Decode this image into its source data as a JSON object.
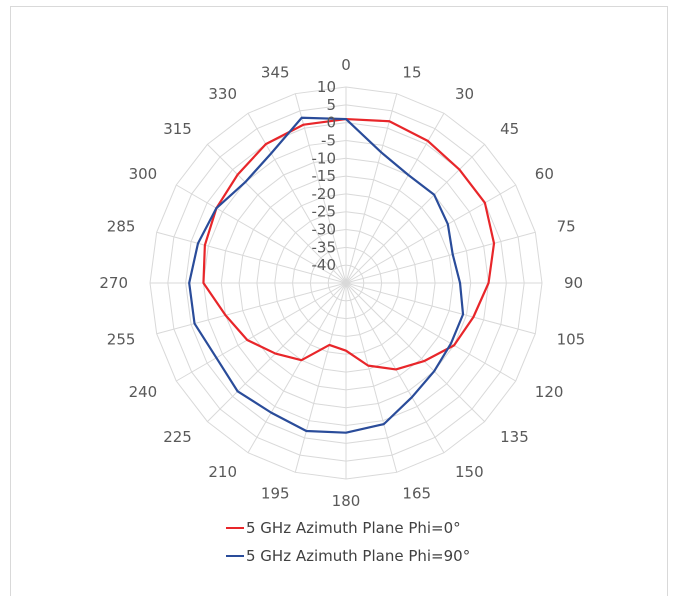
{
  "chart_data": {
    "type": "radar",
    "title": "",
    "categories": [
      "0",
      "15",
      "30",
      "45",
      "60",
      "75",
      "90",
      "105",
      "120",
      "135",
      "150",
      "165",
      "180",
      "195",
      "210",
      "225",
      "240",
      "255",
      "270",
      "285",
      "300",
      "315",
      "330",
      "345"
    ],
    "radial_ticks": [
      "10",
      "5",
      "0",
      "-5",
      "-10",
      "-15",
      "-20",
      "-25",
      "-30",
      "-35",
      "-40"
    ],
    "rlim": [
      -45,
      10
    ],
    "grid": true,
    "legend_position": "bottom",
    "series": [
      {
        "name": "5 GHz Azimuth Plane Phi=0°",
        "color": "#e8262a",
        "values": [
          1,
          2,
          1,
          0,
          0,
          -2,
          -5,
          -8,
          -10,
          -14,
          -17,
          -21,
          -26,
          -27,
          -20,
          -17,
          -13,
          -10,
          -5,
          -4,
          -3,
          -2,
          0,
          1
        ]
      },
      {
        "name": "5 GHz Azimuth Plane Phi=90°",
        "color": "#2a4c9a",
        "values": [
          1,
          -7,
          -10,
          -10,
          -12,
          -14,
          -13,
          -11,
          -11,
          -10,
          -8,
          -4,
          -3,
          -2,
          -3,
          -2,
          -3,
          -1,
          -1,
          -2,
          -3,
          -5,
          -3,
          3
        ]
      }
    ]
  }
}
